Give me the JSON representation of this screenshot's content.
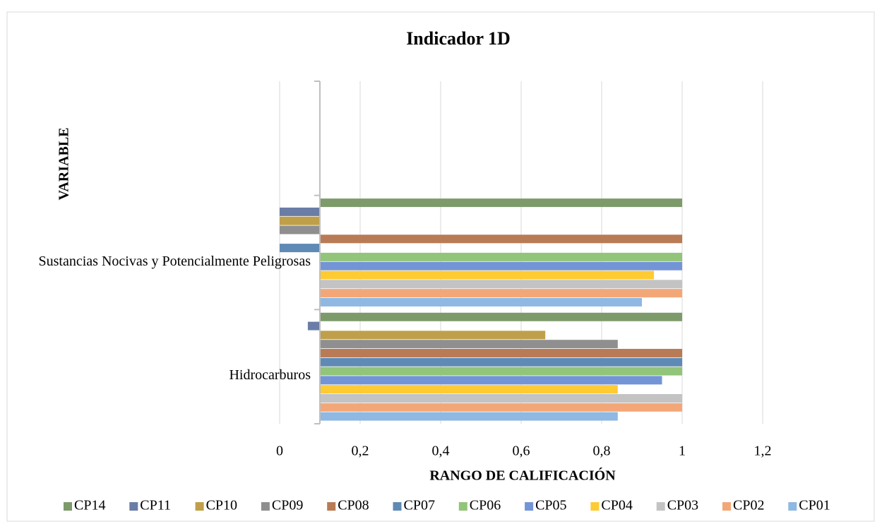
{
  "chart_data": {
    "type": "hbar",
    "title": "Indicador 1D",
    "x_label": "RANGO DE CALIFICACIÓN",
    "y_label": "VARIABLE",
    "categories": [
      "Hidrocarburos",
      "Sustancias Nocivas y Potencialmente Peligrosas",
      null
    ],
    "series": [
      {
        "name": "CP14",
        "color": "#7d9a6b",
        "values": [
          1,
          1,
          null
        ]
      },
      {
        "name": "CP11",
        "color": "#6a7da6",
        "values": [
          0.07,
          0,
          null
        ]
      },
      {
        "name": "CP10",
        "color": "#bf9f4a",
        "values": [
          0.66,
          0,
          null
        ]
      },
      {
        "name": "CP09",
        "color": "#8f8f8f",
        "values": [
          0.84,
          0,
          null
        ]
      },
      {
        "name": "CP08",
        "color": "#b97b55",
        "values": [
          1,
          1,
          null
        ]
      },
      {
        "name": "CP07",
        "color": "#5f8ab5",
        "values": [
          1,
          0,
          null
        ]
      },
      {
        "name": "CP06",
        "color": "#92c47a",
        "values": [
          1,
          1,
          null
        ]
      },
      {
        "name": "CP05",
        "color": "#7395d6",
        "values": [
          0.95,
          1,
          null
        ]
      },
      {
        "name": "CP04",
        "color": "#ffcb33",
        "values": [
          0.84,
          0.93,
          null
        ]
      },
      {
        "name": "CP03",
        "color": "#c3c3c3",
        "values": [
          1,
          1,
          null
        ]
      },
      {
        "name": "CP02",
        "color": "#f3a778",
        "values": [
          1,
          1,
          null
        ]
      },
      {
        "name": "CP01",
        "color": "#8fb8e2",
        "values": [
          0.84,
          0.9,
          null
        ]
      }
    ],
    "xlim": [
      0,
      1.4
    ],
    "xticks": [
      0,
      {
        "value": 0.2,
        "label": "0,2"
      },
      {
        "value": 0.4,
        "label": "0,4"
      },
      {
        "value": 0.6,
        "label": "0,6"
      },
      {
        "value": 0.8,
        "label": "0,8"
      },
      1,
      {
        "value": 1.2,
        "label": "1,2"
      }
    ],
    "axis_crossing": 0.1,
    "grid": true,
    "legend": "bottom"
  }
}
